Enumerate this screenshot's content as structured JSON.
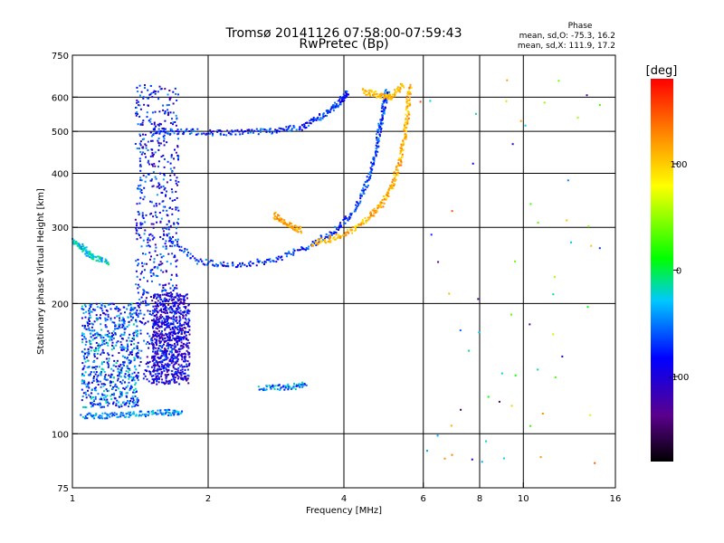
{
  "chart_data": {
    "type": "scatter",
    "title": "Tromsø 20141126 07:58:00-07:59:43",
    "subtitle": "RwPretec (Bp)",
    "xlabel": "Frequency [MHz]",
    "ylabel": "Stationary phase Virtual Height [km]",
    "x_scale": "log",
    "y_scale": "log",
    "xlim": [
      1,
      16
    ],
    "ylim": [
      75,
      750
    ],
    "x_ticks": [
      1,
      2,
      4,
      6,
      8,
      10,
      16
    ],
    "y_ticks": [
      75,
      100,
      200,
      300,
      400,
      500,
      600,
      750
    ],
    "x_gridlines": [
      2,
      4,
      6,
      8,
      10
    ],
    "y_gridlines": [
      100,
      200,
      300,
      400,
      500,
      600
    ],
    "grid": true,
    "stats": {
      "heading": "Phase",
      "line_o": "mean, sd,O: -75.3, 16.2",
      "line_x": "mean, sd,X: 111.9, 17.2"
    },
    "colorbar": {
      "label": "[deg]",
      "range": [
        -180,
        180
      ],
      "ticks": [
        100,
        0,
        -100
      ],
      "colormap": [
        "#000000",
        "#5a008c",
        "#0000ff",
        "#00c8ff",
        "#00ff00",
        "#ffff00",
        "#ff8c00",
        "#ff0000"
      ]
    },
    "series": [
      {
        "type": "trace",
        "points": [
          [
            1.05,
            110
          ],
          [
            1.2,
            110
          ],
          [
            1.4,
            111
          ],
          [
            1.6,
            112
          ],
          [
            1.75,
            112
          ]
        ],
        "phase": [
          -80,
          -25
        ]
      },
      {
        "type": "trace",
        "points": [
          [
            1.0,
            280
          ],
          [
            1.05,
            270
          ],
          [
            1.1,
            258
          ],
          [
            1.2,
            248
          ]
        ],
        "phase": [
          -60,
          -10
        ]
      },
      {
        "type": "column",
        "x": [
          1.38,
          1.72
        ],
        "y": [
          130,
          640
        ],
        "phase": [
          -130,
          -50
        ]
      },
      {
        "type": "column",
        "x": [
          1.5,
          1.82
        ],
        "y": [
          130,
          210
        ],
        "phase": [
          -140,
          -70
        ]
      },
      {
        "type": "column",
        "x": [
          1.05,
          1.4
        ],
        "y": [
          115,
          200
        ],
        "phase": [
          -120,
          -20
        ]
      },
      {
        "type": "trace",
        "points": [
          [
            1.5,
            500
          ],
          [
            1.8,
            500
          ],
          [
            2.2,
            495
          ],
          [
            2.7,
            500
          ],
          [
            3.2,
            510
          ],
          [
            3.6,
            545
          ],
          [
            3.9,
            580
          ],
          [
            4.1,
            620
          ]
        ],
        "phase": [
          -110,
          -50
        ]
      },
      {
        "type": "trace",
        "points": [
          [
            1.6,
            290
          ],
          [
            1.9,
            250
          ],
          [
            2.3,
            245
          ],
          [
            2.8,
            252
          ],
          [
            3.3,
            270
          ],
          [
            3.8,
            292
          ],
          [
            4.2,
            325
          ],
          [
            4.5,
            380
          ],
          [
            4.7,
            440
          ],
          [
            4.8,
            510
          ],
          [
            4.9,
            570
          ],
          [
            5.0,
            620
          ]
        ],
        "phase": [
          -110,
          -50
        ]
      },
      {
        "type": "trace",
        "points": [
          [
            3.4,
            275
          ],
          [
            3.9,
            285
          ],
          [
            4.4,
            305
          ],
          [
            4.8,
            335
          ],
          [
            5.1,
            370
          ],
          [
            5.3,
            420
          ],
          [
            5.45,
            480
          ],
          [
            5.55,
            560
          ],
          [
            5.6,
            640
          ]
        ],
        "phase": [
          90,
          140
        ]
      },
      {
        "type": "trace",
        "points": [
          [
            2.8,
            320
          ],
          [
            3.0,
            305
          ],
          [
            3.2,
            295
          ]
        ],
        "phase": [
          100,
          140
        ]
      },
      {
        "type": "trace",
        "points": [
          [
            4.4,
            620
          ],
          [
            4.8,
            605
          ],
          [
            5.1,
            600
          ],
          [
            5.4,
            640
          ]
        ],
        "phase": [
          90,
          130
        ]
      },
      {
        "type": "trace",
        "points": [
          [
            2.6,
            128
          ],
          [
            3.0,
            128
          ],
          [
            3.3,
            130
          ]
        ],
        "phase": [
          -90,
          -20
        ]
      },
      {
        "type": "noise",
        "x": [
          5.8,
          15
        ],
        "y": [
          85,
          700
        ],
        "phase": [
          -160,
          160
        ]
      }
    ]
  }
}
